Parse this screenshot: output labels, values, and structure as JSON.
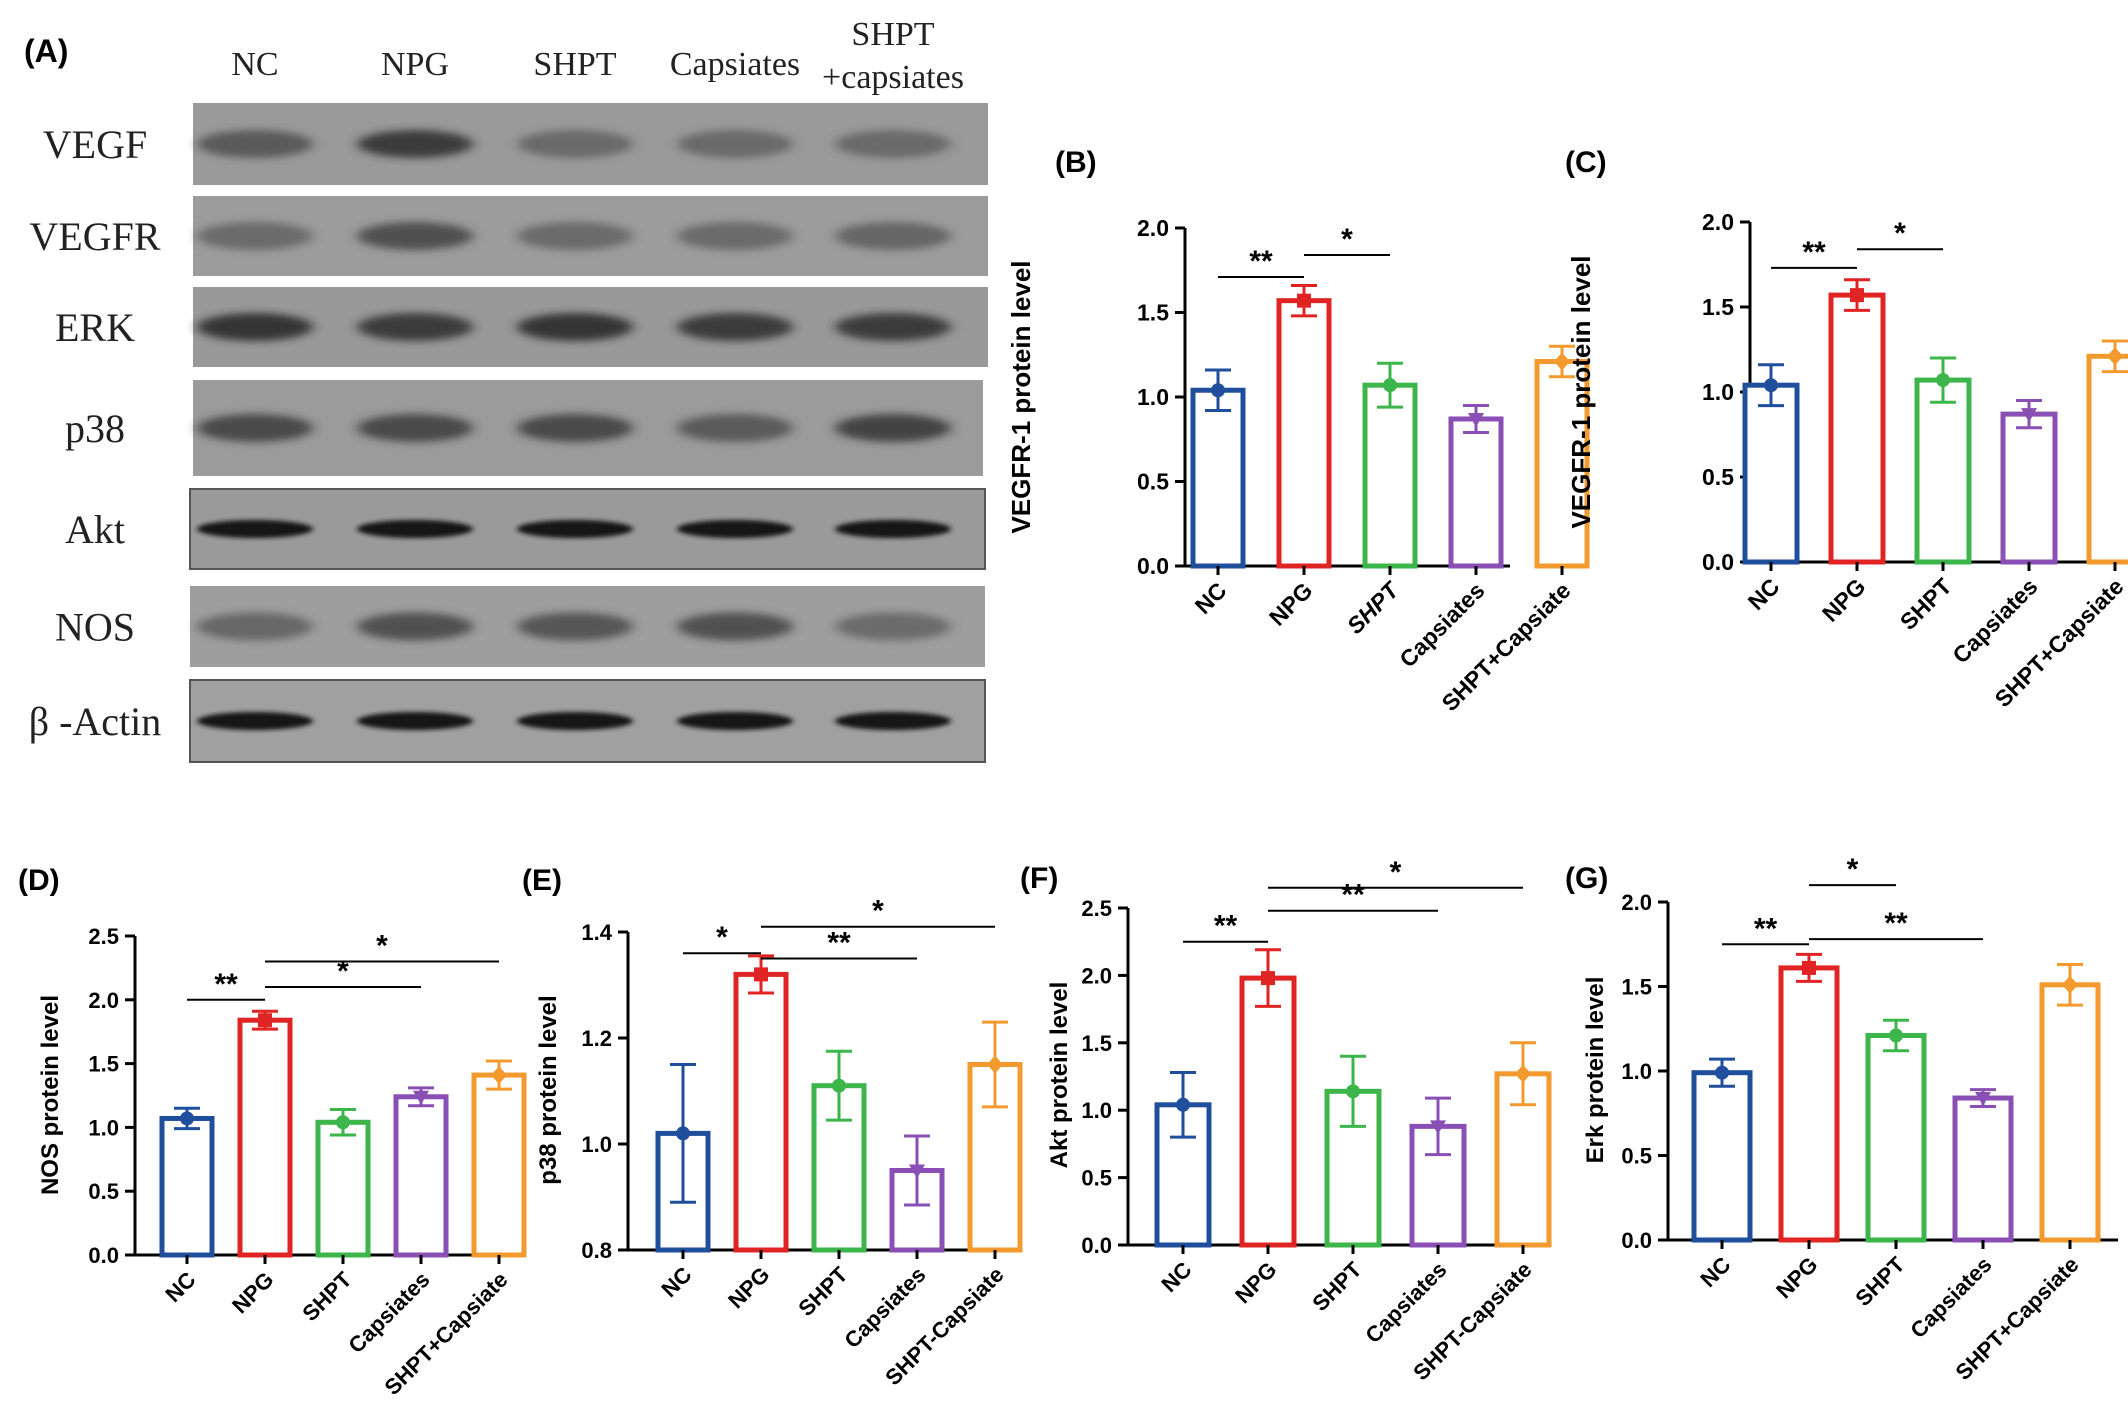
{
  "panel_a": {
    "label": "(A)",
    "lanes": [
      "NC",
      "NPG",
      "SHPT",
      "Capsiates"
    ],
    "lane5_line1": "SHPT",
    "lane5_line2": "+capsiates",
    "proteins": [
      "VEGF",
      "VEGFR",
      "ERK",
      "p38",
      "Akt",
      "NOS",
      "β -Actin"
    ]
  },
  "chart_data": [
    {
      "panel": "(B)",
      "type": "bar",
      "categories": [
        "NC",
        "NPG",
        "SHPT",
        "Capsiates",
        "SHPT+Capsiate"
      ],
      "values": [
        1.04,
        1.57,
        1.07,
        0.87,
        1.21
      ],
      "errors": [
        0.12,
        0.09,
        0.13,
        0.08,
        0.09
      ],
      "ylabel": "VEGFR-1 protein level",
      "ylim": [
        0,
        2.0
      ],
      "yticks": [
        "0.0",
        "0.5",
        "1.0",
        "1.5",
        "2.0"
      ],
      "colors": [
        "#1f4e9c",
        "#e02424",
        "#3cb54a",
        "#8a4fb5",
        "#f29a2e"
      ],
      "italic_categories": [
        2
      ],
      "significance": [
        {
          "from": 0,
          "to": 1,
          "label": "**",
          "y": 1.71
        },
        {
          "from": 1,
          "to": 2,
          "label": "*",
          "y": 1.84
        }
      ]
    },
    {
      "panel": "(C)",
      "type": "bar",
      "categories": [
        "NC",
        "NPG",
        "SHPT",
        "Capsiates",
        "SHPT+Capsiate"
      ],
      "values": [
        1.04,
        1.57,
        1.07,
        0.87,
        1.21
      ],
      "errors": [
        0.12,
        0.09,
        0.13,
        0.08,
        0.09
      ],
      "ylabel": "VEGFR-1 protein level",
      "ylim": [
        0,
        2.0
      ],
      "yticks": [
        "0.0",
        "0.5",
        "1.0",
        "1.5",
        "2.0"
      ],
      "colors": [
        "#1f4e9c",
        "#e02424",
        "#3cb54a",
        "#8a4fb5",
        "#f29a2e"
      ],
      "italic_categories": [],
      "significance": [
        {
          "from": 0,
          "to": 1,
          "label": "**",
          "y": 1.73
        },
        {
          "from": 1,
          "to": 2,
          "label": "*",
          "y": 1.84
        }
      ]
    },
    {
      "panel": "(D)",
      "type": "bar",
      "categories": [
        "NC",
        "NPG",
        "SHPT",
        "Capsiates",
        "SHPT+Capsiate"
      ],
      "values": [
        1.07,
        1.84,
        1.04,
        1.24,
        1.41
      ],
      "errors": [
        0.08,
        0.07,
        0.1,
        0.07,
        0.11
      ],
      "ylabel": "NOS protein level",
      "ylim": [
        0,
        2.5
      ],
      "yticks": [
        "0.0",
        "0.5",
        "1.0",
        "1.5",
        "2.0",
        "2.5"
      ],
      "colors": [
        "#1f4e9c",
        "#e02424",
        "#3cb54a",
        "#8a4fb5",
        "#f29a2e"
      ],
      "italic_categories": [],
      "significance": [
        {
          "from": 0,
          "to": 1,
          "label": "**",
          "y": 2.0
        },
        {
          "from": 1,
          "to": 3,
          "label": "*",
          "y": 2.1
        },
        {
          "from": 1,
          "to": 4,
          "label": "*",
          "y": 2.3
        }
      ]
    },
    {
      "panel": "(E)",
      "type": "bar",
      "categories": [
        "NC",
        "NPG",
        "SHPT",
        "Capsiates",
        "SHPT-Capsiate"
      ],
      "values": [
        1.02,
        1.32,
        1.11,
        0.95,
        1.15
      ],
      "errors": [
        0.13,
        0.035,
        0.065,
        0.065,
        0.08
      ],
      "ylabel": "p38 protein level",
      "ylim": [
        0.8,
        1.4
      ],
      "yticks": [
        "0.8",
        "1.0",
        "1.2",
        "1.4"
      ],
      "colors": [
        "#1f4e9c",
        "#e02424",
        "#3cb54a",
        "#8a4fb5",
        "#f29a2e"
      ],
      "italic_categories": [],
      "significance": [
        {
          "from": 0,
          "to": 1,
          "label": "*",
          "y": 1.36
        },
        {
          "from": 1,
          "to": 3,
          "label": "**",
          "y": 1.35
        },
        {
          "from": 1,
          "to": 4,
          "label": "*",
          "y": 1.41
        }
      ]
    },
    {
      "panel": "(F)",
      "type": "bar",
      "categories": [
        "NC",
        "NPG",
        "SHPT",
        "Capsiates",
        "SHPT-Capsiate"
      ],
      "values": [
        1.04,
        1.98,
        1.14,
        0.88,
        1.27
      ],
      "errors": [
        0.24,
        0.21,
        0.26,
        0.21,
        0.23
      ],
      "ylabel": "Akt protein level",
      "ylim": [
        0,
        2.5
      ],
      "yticks": [
        "0.0",
        "0.5",
        "1.0",
        "1.5",
        "2.0",
        "2.5"
      ],
      "colors": [
        "#1f4e9c",
        "#e02424",
        "#3cb54a",
        "#8a4fb5",
        "#f29a2e"
      ],
      "italic_categories": [],
      "significance": [
        {
          "from": 0,
          "to": 1,
          "label": "**",
          "y": 2.25
        },
        {
          "from": 1,
          "to": 3,
          "label": "**",
          "y": 2.48
        },
        {
          "from": 1,
          "to": 4,
          "label": "*",
          "y": 2.65
        }
      ]
    },
    {
      "panel": "(G)",
      "type": "bar",
      "categories": [
        "NC",
        "NPG",
        "SHPT",
        "Capsiates",
        "SHPT+Capsiate"
      ],
      "values": [
        0.99,
        1.61,
        1.21,
        0.84,
        1.51
      ],
      "errors": [
        0.08,
        0.08,
        0.09,
        0.05,
        0.12
      ],
      "ylabel": "Erk protein level",
      "ylim": [
        0,
        2.0
      ],
      "yticks": [
        "0.0",
        "0.5",
        "1.0",
        "1.5",
        "2.0"
      ],
      "colors": [
        "#1f4e9c",
        "#e02424",
        "#3cb54a",
        "#8a4fb5",
        "#f29a2e"
      ],
      "italic_categories": [],
      "significance": [
        {
          "from": 0,
          "to": 1,
          "label": "**",
          "y": 1.75
        },
        {
          "from": 1,
          "to": 3,
          "label": "**",
          "y": 1.78
        },
        {
          "from": 1,
          "to": 2,
          "label": "*",
          "y": 2.1
        }
      ]
    }
  ]
}
